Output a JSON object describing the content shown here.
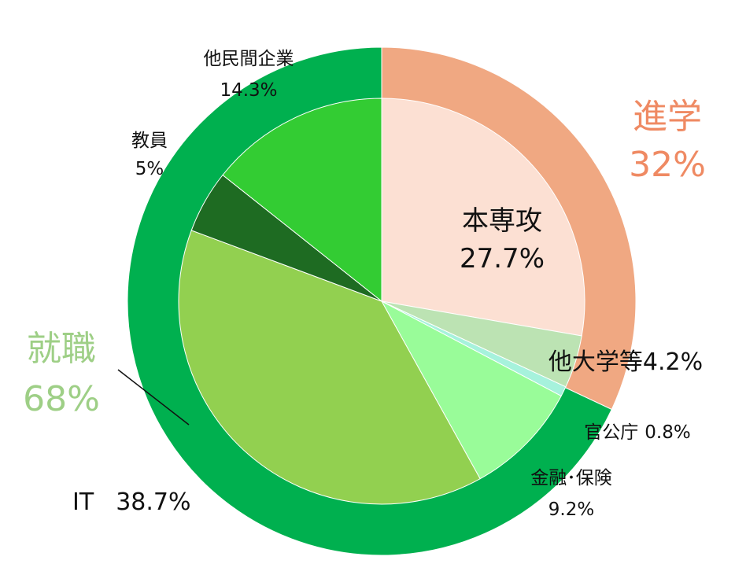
{
  "chart_data": {
    "type": "pie",
    "outer_ring": [
      {
        "name": "進学",
        "value": 32,
        "label": "32%",
        "color": "#f0a882"
      },
      {
        "name": "就職",
        "value": 68,
        "label": "68%",
        "color": "#00b04f"
      }
    ],
    "inner_slices": [
      {
        "name": "本専攻",
        "value": 27.7,
        "label": "27.7%",
        "color": "#fce0d3"
      },
      {
        "name": "他大学等",
        "value": 4.2,
        "label": "4.2%",
        "color": "#bce3b3"
      },
      {
        "name": "官公庁",
        "value": 0.8,
        "label": "0.8%",
        "color": "#a6f2dc"
      },
      {
        "name": "金融･保険",
        "value": 9.2,
        "label": "9.2%",
        "color": "#99fc99"
      },
      {
        "name": "IT",
        "value": 38.7,
        "label": "38.7%",
        "color": "#92d050"
      },
      {
        "name": "教員",
        "value": 5,
        "label": "5%",
        "color": "#1e6b22"
      },
      {
        "name": "他民間企業",
        "value": 14.3,
        "label": "14.3%",
        "color": "#33cc33"
      }
    ]
  }
}
